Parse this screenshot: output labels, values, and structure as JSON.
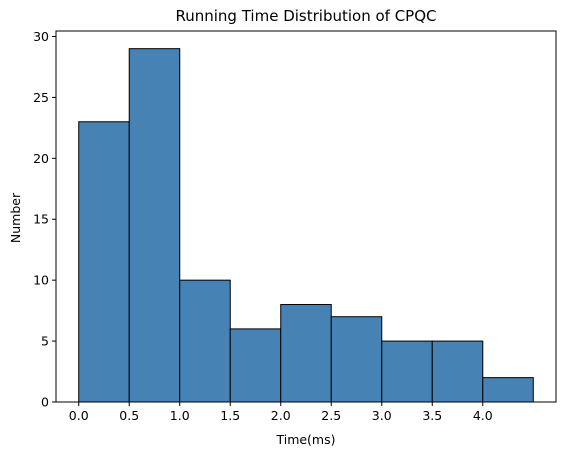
{
  "chart_data": {
    "type": "bar",
    "title": "Running Time Distribution of CPQC",
    "xlabel": "Time(ms)",
    "ylabel": "Number",
    "bins": [
      {
        "start": 0.0,
        "end": 0.5,
        "count": 23
      },
      {
        "start": 0.5,
        "end": 1.0,
        "count": 29
      },
      {
        "start": 1.0,
        "end": 1.5,
        "count": 10
      },
      {
        "start": 1.5,
        "end": 2.0,
        "count": 6
      },
      {
        "start": 2.0,
        "end": 2.5,
        "count": 8
      },
      {
        "start": 2.5,
        "end": 3.0,
        "count": 7
      },
      {
        "start": 3.0,
        "end": 3.5,
        "count": 5
      },
      {
        "start": 3.5,
        "end": 4.0,
        "count": 5
      },
      {
        "start": 4.0,
        "end": 4.5,
        "count": 2
      }
    ],
    "xticks": [
      0.0,
      0.5,
      1.0,
      1.5,
      2.0,
      2.5,
      3.0,
      3.5,
      4.0
    ],
    "yticks": [
      0,
      5,
      10,
      15,
      20,
      25,
      30
    ],
    "xlim": [
      -0.225,
      4.725
    ],
    "ylim": [
      0,
      30.45
    ],
    "grid": false,
    "colors": {
      "bar_fill": "#4682b4",
      "bar_edge": "#000000"
    }
  }
}
